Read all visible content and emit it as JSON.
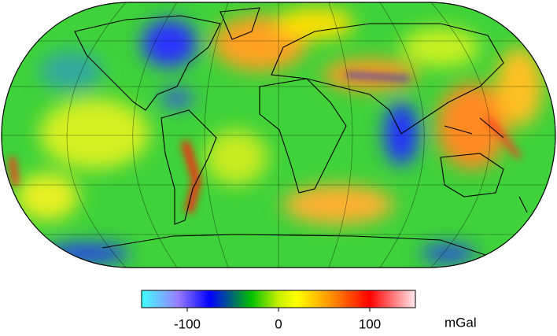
{
  "colorbar": {
    "range": [
      -150,
      150
    ],
    "ticks": [
      -100,
      0,
      100
    ],
    "unit": "mGal",
    "stops": [
      {
        "value": -150,
        "color": "#40ffff"
      },
      {
        "value": -110,
        "color": "#9a7cff"
      },
      {
        "value": -75,
        "color": "#0000ff"
      },
      {
        "value": -30,
        "color": "#00c000"
      },
      {
        "value": 0,
        "color": "#c8f000"
      },
      {
        "value": 20,
        "color": "#ffff00"
      },
      {
        "value": 55,
        "color": "#ff9900"
      },
      {
        "value": 100,
        "color": "#ff0000"
      },
      {
        "value": 150,
        "color": "#ffe8ec"
      }
    ]
  }
}
